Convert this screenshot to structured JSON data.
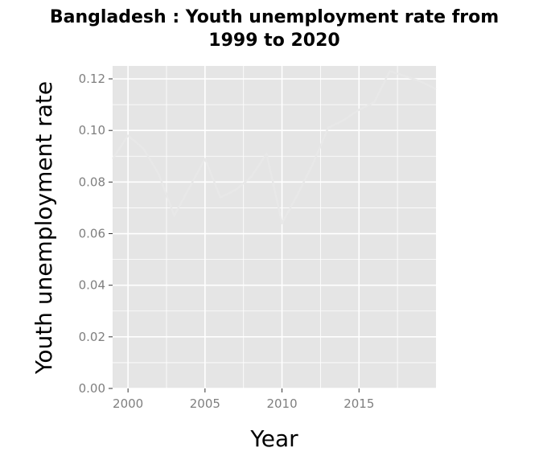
{
  "chart_data": {
    "type": "line",
    "title_line1": "Bangladesh : Youth unemployment rate from",
    "title_line2": "1999 to 2020",
    "xlabel": "Year",
    "ylabel": "Youth unemployment rate",
    "xlim": [
      1999,
      2020
    ],
    "ylim": [
      0,
      0.125
    ],
    "x_ticks": [
      2000,
      2005,
      2010,
      2015
    ],
    "y_ticks": [
      0.0,
      0.02,
      0.04,
      0.06,
      0.08,
      0.1,
      0.12
    ],
    "y_tick_labels": [
      "0.00",
      "0.02",
      "0.04",
      "0.06",
      "0.08",
      "0.10",
      "0.12"
    ],
    "x_tick_labels": [
      "2000",
      "2005",
      "2010",
      "2015"
    ],
    "grid": true,
    "colors": {
      "panel": "#e5e5e5",
      "grid": "#ffffff",
      "line": "#e8e8e8"
    },
    "series": [
      {
        "x": [
          1999,
          2000,
          2001,
          2002,
          2003,
          2004,
          2005,
          2006,
          2007,
          2008,
          2009,
          2010,
          2011,
          2012,
          2013,
          2014,
          2015,
          2016,
          2017,
          2018,
          2019,
          2020
        ],
        "values": [
          0.089,
          0.098,
          0.093,
          0.083,
          0.067,
          0.078,
          0.089,
          0.074,
          0.077,
          0.082,
          0.091,
          0.064,
          0.075,
          0.087,
          0.101,
          0.104,
          0.108,
          0.111,
          0.123,
          0.121,
          0.119,
          0.116
        ]
      }
    ]
  }
}
